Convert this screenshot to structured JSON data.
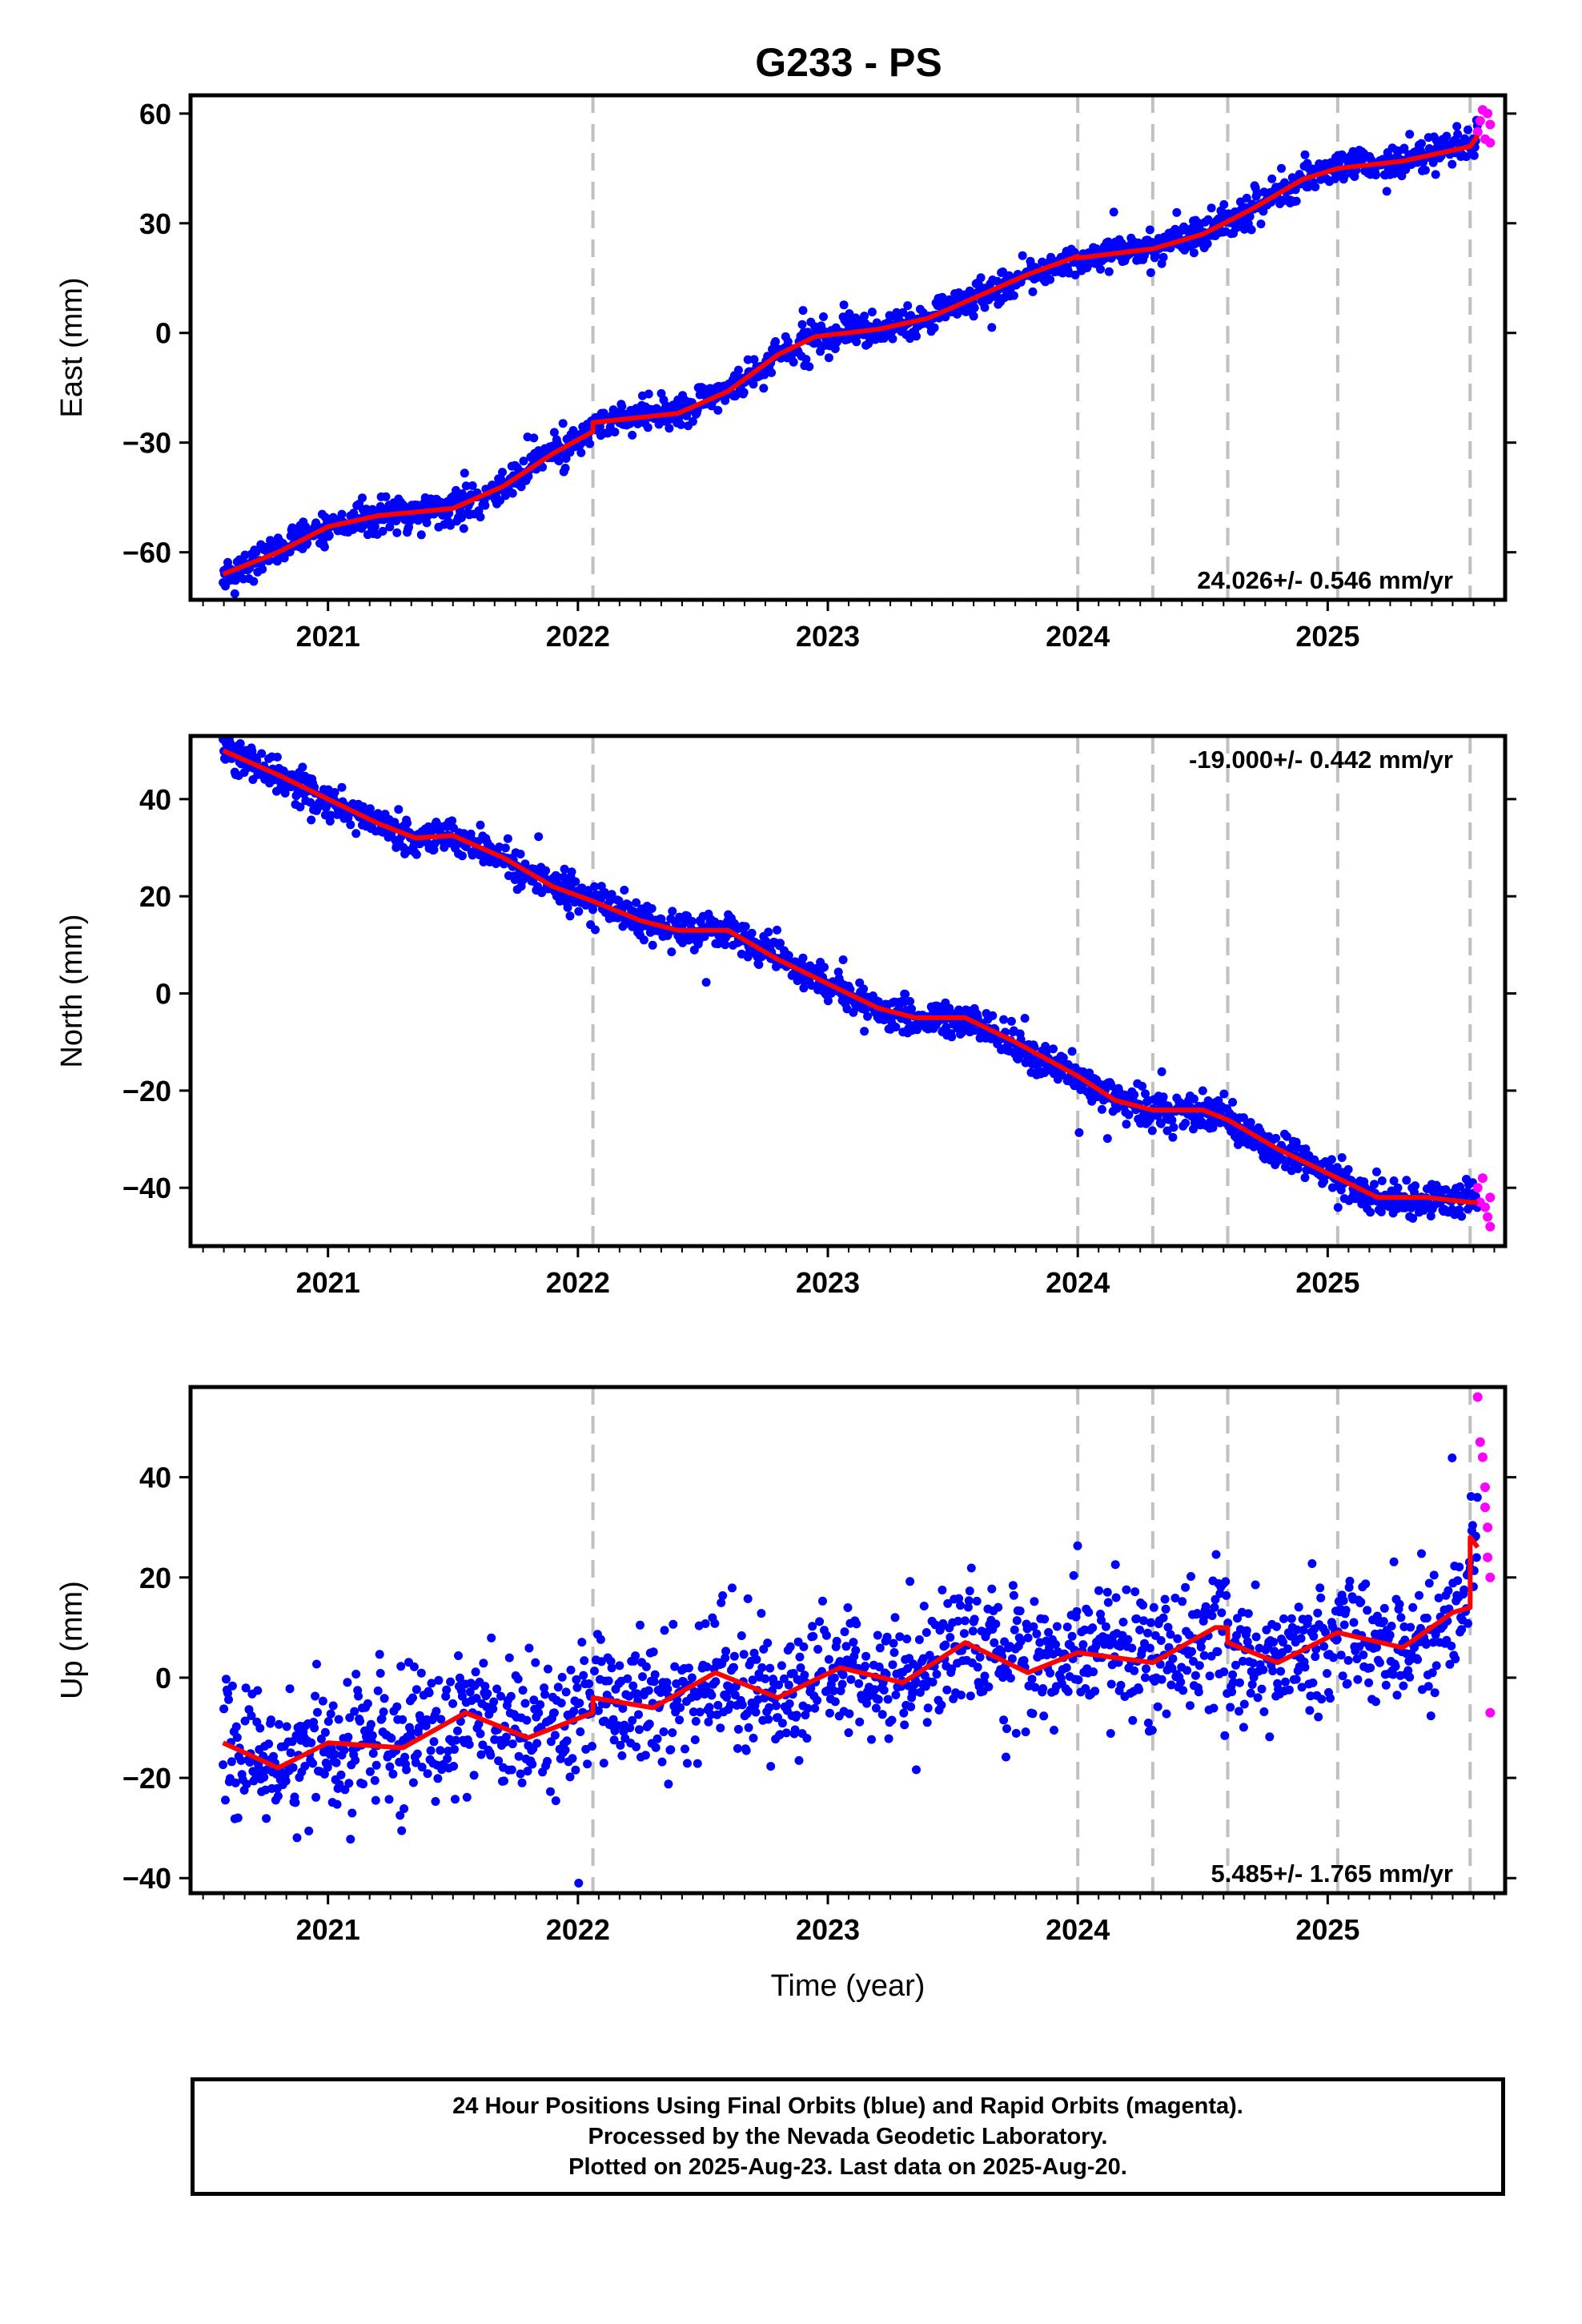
{
  "title": "G233 - PS",
  "footer": {
    "lines": [
      "24 Hour Positions Using Final Orbits (blue) and Rapid Orbits (magenta).",
      "Processed by the Nevada Geodetic Laboratory.",
      "Plotted on 2025-Aug-23. Last data on 2025-Aug-20."
    ]
  },
  "colors": {
    "final_points": "#0000ff",
    "rapid_points": "#ff00ff",
    "model": "#ff0000",
    "event_lines": "#c0c0c0"
  },
  "chart_data": [
    {
      "type": "scatter",
      "ylabel": "East (mm)",
      "xlabel": "",
      "xlim": [
        2020.45,
        2025.71
      ],
      "ylim": [
        -73,
        65
      ],
      "x_ticks": [
        2021,
        2022,
        2023,
        2024,
        2025
      ],
      "y_ticks": [
        60,
        30,
        0,
        -30,
        -60
      ],
      "grid": false,
      "event_lines": [
        2022.06,
        2024.0,
        2024.3,
        2024.6,
        2025.04,
        2025.57
      ],
      "rate_label": "24.026+/- 0.546 mm/yr",
      "rate_label_position": "bottom-right",
      "series": [
        {
          "kind": "final",
          "x_range": [
            2020.58,
            2025.6
          ],
          "trend_points": [
            [
              2020.58,
              -66
            ],
            [
              2020.8,
              -60
            ],
            [
              2021.0,
              -53
            ],
            [
              2021.2,
              -50
            ],
            [
              2021.5,
              -48
            ],
            [
              2021.7,
              -42
            ],
            [
              2021.9,
              -33
            ],
            [
              2022.06,
              -27
            ],
            [
              2022.06,
              -24.5
            ],
            [
              2022.4,
              -22
            ],
            [
              2022.6,
              -16
            ],
            [
              2022.8,
              -6
            ],
            [
              2022.95,
              -1
            ],
            [
              2023.2,
              1
            ],
            [
              2023.4,
              4
            ],
            [
              2023.6,
              10
            ],
            [
              2023.8,
              16
            ],
            [
              2024.0,
              21
            ],
            [
              2024.0,
              20.5
            ],
            [
              2024.3,
              23
            ],
            [
              2024.5,
              27
            ],
            [
              2024.7,
              34
            ],
            [
              2024.9,
              42
            ],
            [
              2025.04,
              45
            ],
            [
              2025.3,
              47
            ],
            [
              2025.57,
              51
            ],
            [
              2025.6,
              54
            ]
          ],
          "noise": 2.2
        },
        {
          "kind": "rapid",
          "points": [
            [
              2025.6,
              55
            ],
            [
              2025.61,
              58
            ],
            [
              2025.62,
              61
            ],
            [
              2025.63,
              53
            ],
            [
              2025.64,
              60
            ],
            [
              2025.65,
              52
            ],
            [
              2025.65,
              57
            ]
          ]
        }
      ]
    },
    {
      "type": "scatter",
      "ylabel": "North (mm)",
      "xlabel": "",
      "xlim": [
        2020.45,
        2025.71
      ],
      "ylim": [
        -52,
        53
      ],
      "x_ticks": [
        2021,
        2022,
        2023,
        2024,
        2025
      ],
      "y_ticks": [
        40,
        20,
        0,
        -20,
        -40
      ],
      "grid": false,
      "event_lines": [
        2022.06,
        2024.0,
        2024.3,
        2024.6,
        2025.04,
        2025.57
      ],
      "rate_label": "-19.000+/- 0.442 mm/yr",
      "rate_label_position": "top-right",
      "series": [
        {
          "kind": "final",
          "x_range": [
            2020.58,
            2025.6
          ],
          "trend_points": [
            [
              2020.58,
              50
            ],
            [
              2020.8,
              45
            ],
            [
              2021.0,
              40
            ],
            [
              2021.2,
              35
            ],
            [
              2021.35,
              32
            ],
            [
              2021.5,
              32.5
            ],
            [
              2021.7,
              28
            ],
            [
              2021.9,
              22
            ],
            [
              2022.06,
              19
            ],
            [
              2022.25,
              15
            ],
            [
              2022.4,
              13
            ],
            [
              2022.6,
              13
            ],
            [
              2022.8,
              7
            ],
            [
              2023.0,
              2
            ],
            [
              2023.2,
              -3
            ],
            [
              2023.35,
              -5
            ],
            [
              2023.55,
              -5
            ],
            [
              2023.75,
              -10
            ],
            [
              2024.0,
              -17
            ],
            [
              2024.15,
              -22
            ],
            [
              2024.3,
              -24
            ],
            [
              2024.5,
              -24
            ],
            [
              2024.6,
              -26
            ],
            [
              2024.8,
              -32
            ],
            [
              2025.04,
              -38
            ],
            [
              2025.2,
              -42
            ],
            [
              2025.4,
              -42
            ],
            [
              2025.57,
              -43
            ],
            [
              2025.6,
              -43
            ]
          ],
          "noise": 1.8
        },
        {
          "kind": "rapid",
          "points": [
            [
              2025.6,
              -40
            ],
            [
              2025.61,
              -43
            ],
            [
              2025.62,
              -38
            ],
            [
              2025.63,
              -44
            ],
            [
              2025.64,
              -46
            ],
            [
              2025.65,
              -48
            ],
            [
              2025.65,
              -42
            ]
          ]
        }
      ]
    },
    {
      "type": "scatter",
      "ylabel": "Up (mm)",
      "xlabel": "Time (year)",
      "xlim": [
        2020.45,
        2025.71
      ],
      "ylim": [
        -43,
        58
      ],
      "x_ticks": [
        2021,
        2022,
        2023,
        2024,
        2025
      ],
      "y_ticks": [
        40,
        20,
        0,
        -20,
        -40
      ],
      "grid": false,
      "event_lines": [
        2022.06,
        2024.0,
        2024.3,
        2024.6,
        2025.04,
        2025.57
      ],
      "rate_label": "5.485+/- 1.765 mm/yr",
      "rate_label_position": "bottom-right",
      "series": [
        {
          "kind": "final",
          "x_range": [
            2020.58,
            2025.6
          ],
          "trend_points": [
            [
              2020.58,
              -13
            ],
            [
              2020.8,
              -18
            ],
            [
              2021.0,
              -13
            ],
            [
              2021.3,
              -14
            ],
            [
              2021.55,
              -7
            ],
            [
              2021.8,
              -12
            ],
            [
              2022.06,
              -7
            ],
            [
              2022.06,
              -4
            ],
            [
              2022.3,
              -6
            ],
            [
              2022.55,
              1
            ],
            [
              2022.8,
              -4
            ],
            [
              2023.05,
              2
            ],
            [
              2023.3,
              -1
            ],
            [
              2023.55,
              7
            ],
            [
              2023.8,
              1
            ],
            [
              2024.0,
              5
            ],
            [
              2024.3,
              3
            ],
            [
              2024.55,
              10
            ],
            [
              2024.6,
              10
            ],
            [
              2024.6,
              7
            ],
            [
              2024.8,
              3
            ],
            [
              2025.04,
              9
            ],
            [
              2025.3,
              6
            ],
            [
              2025.5,
              13
            ],
            [
              2025.57,
              14
            ],
            [
              2025.57,
              28
            ],
            [
              2025.6,
              26
            ]
          ],
          "noise": 6.5
        },
        {
          "kind": "rapid",
          "points": [
            [
              2025.6,
              56
            ],
            [
              2025.61,
              47
            ],
            [
              2025.62,
              44
            ],
            [
              2025.63,
              38
            ],
            [
              2025.63,
              34
            ],
            [
              2025.64,
              30
            ],
            [
              2025.64,
              24
            ],
            [
              2025.65,
              20
            ],
            [
              2025.65,
              -7
            ]
          ]
        }
      ]
    }
  ]
}
